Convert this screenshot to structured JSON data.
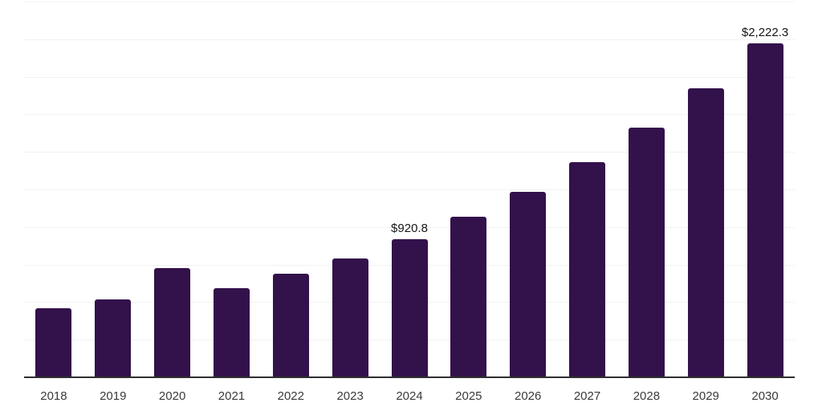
{
  "chart_data": {
    "type": "bar",
    "title": "",
    "xlabel": "",
    "ylabel": "",
    "categories": [
      "2018",
      "2019",
      "2020",
      "2021",
      "2022",
      "2023",
      "2024",
      "2025",
      "2026",
      "2027",
      "2028",
      "2029",
      "2030"
    ],
    "values": [
      459,
      520,
      724,
      593,
      689,
      793,
      920.8,
      1068,
      1234,
      1432,
      1661,
      1923,
      2222.3
    ],
    "value_labels": {
      "2024": "$920.8",
      "2030": "$2,222.3"
    },
    "ylim": [
      0,
      2500
    ],
    "gridline_step": 250,
    "grid": true,
    "legend_position": "none",
    "y_axis_tick_labels_visible": false,
    "colors": {
      "bar": "#33114b",
      "gridline": "#f2f2f2",
      "axis_line": "#2e2e2e",
      "x_tick_label": "#3a3a3a",
      "value_label": "#141414",
      "background": "#ffffff"
    }
  }
}
